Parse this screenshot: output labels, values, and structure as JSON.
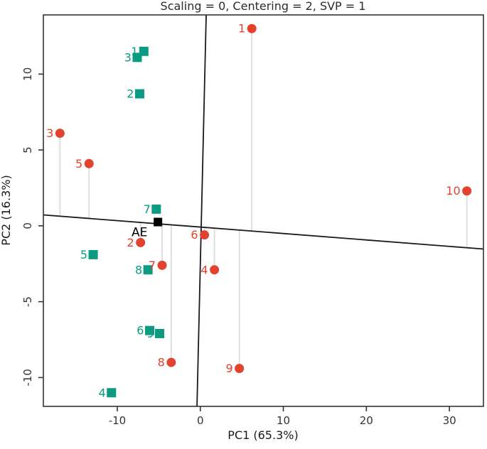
{
  "chart_data": {
    "type": "scatter",
    "title": "Scaling = 0, Centering = 2, SVP = 1",
    "xlabel": "PC1 (65.3%)",
    "ylabel": "PC2 (16.3%)",
    "xlim": [
      -18.9,
      34.1
    ],
    "ylim": [
      -11.9,
      13.9
    ],
    "x_ticks": [
      -10,
      0,
      10,
      20,
      30
    ],
    "y_ticks": [
      -10,
      -5,
      0,
      5,
      10
    ],
    "grid": false,
    "legend": "none",
    "series": [
      {
        "name": "observations",
        "marker": "circle",
        "color": "#E2432E",
        "has_projection_lines": true,
        "points": [
          {
            "label": "1",
            "x": 6.2,
            "y": 13.0
          },
          {
            "label": "2",
            "x": -7.2,
            "y": -1.1
          },
          {
            "label": "3",
            "x": -16.9,
            "y": 6.1
          },
          {
            "label": "4",
            "x": 1.7,
            "y": -2.9
          },
          {
            "label": "5",
            "x": -13.4,
            "y": 4.1
          },
          {
            "label": "6",
            "x": 0.5,
            "y": -0.6
          },
          {
            "label": "7",
            "x": -4.6,
            "y": -2.6
          },
          {
            "label": "8",
            "x": -3.5,
            "y": -9.0
          },
          {
            "label": "9",
            "x": 4.7,
            "y": -9.4
          },
          {
            "label": "10",
            "x": 32.1,
            "y": 2.3
          }
        ]
      },
      {
        "name": "variables",
        "marker": "square",
        "color": "#0A9B82",
        "has_projection_lines": false,
        "points": [
          {
            "label": "1",
            "x": -6.8,
            "y": 11.5
          },
          {
            "label": "2",
            "x": -7.3,
            "y": 8.7
          },
          {
            "label": "3",
            "x": -7.6,
            "y": 11.1
          },
          {
            "label": "4",
            "x": -10.7,
            "y": -11.0
          },
          {
            "label": "5",
            "x": -12.9,
            "y": -1.9
          },
          {
            "label": "6",
            "x": -6.1,
            "y": -6.9
          },
          {
            "label": "7",
            "x": -5.3,
            "y": 1.1
          },
          {
            "label": "8",
            "x": -6.3,
            "y": -2.9
          },
          {
            "label": "9",
            "x": -4.9,
            "y": -7.1
          }
        ]
      }
    ],
    "center_point": {
      "label": "AE",
      "x": -5.1,
      "y": 0.25,
      "marker": "square",
      "color": "#000000"
    },
    "axis_lines": [
      {
        "name": "pc1-direction-line",
        "x1": -18.9,
        "y1": 0.72,
        "x2": 34.1,
        "y2": -1.53
      },
      {
        "name": "pc2-direction-line",
        "x1": 0.71,
        "y1": 13.9,
        "x2": -0.4,
        "y2": -11.9
      }
    ],
    "colors": {
      "projection_line": "#D9D9D9",
      "box_axis": "#333333",
      "direction_line": "#1A1A1A",
      "title_text": "#2B2B2B"
    }
  }
}
